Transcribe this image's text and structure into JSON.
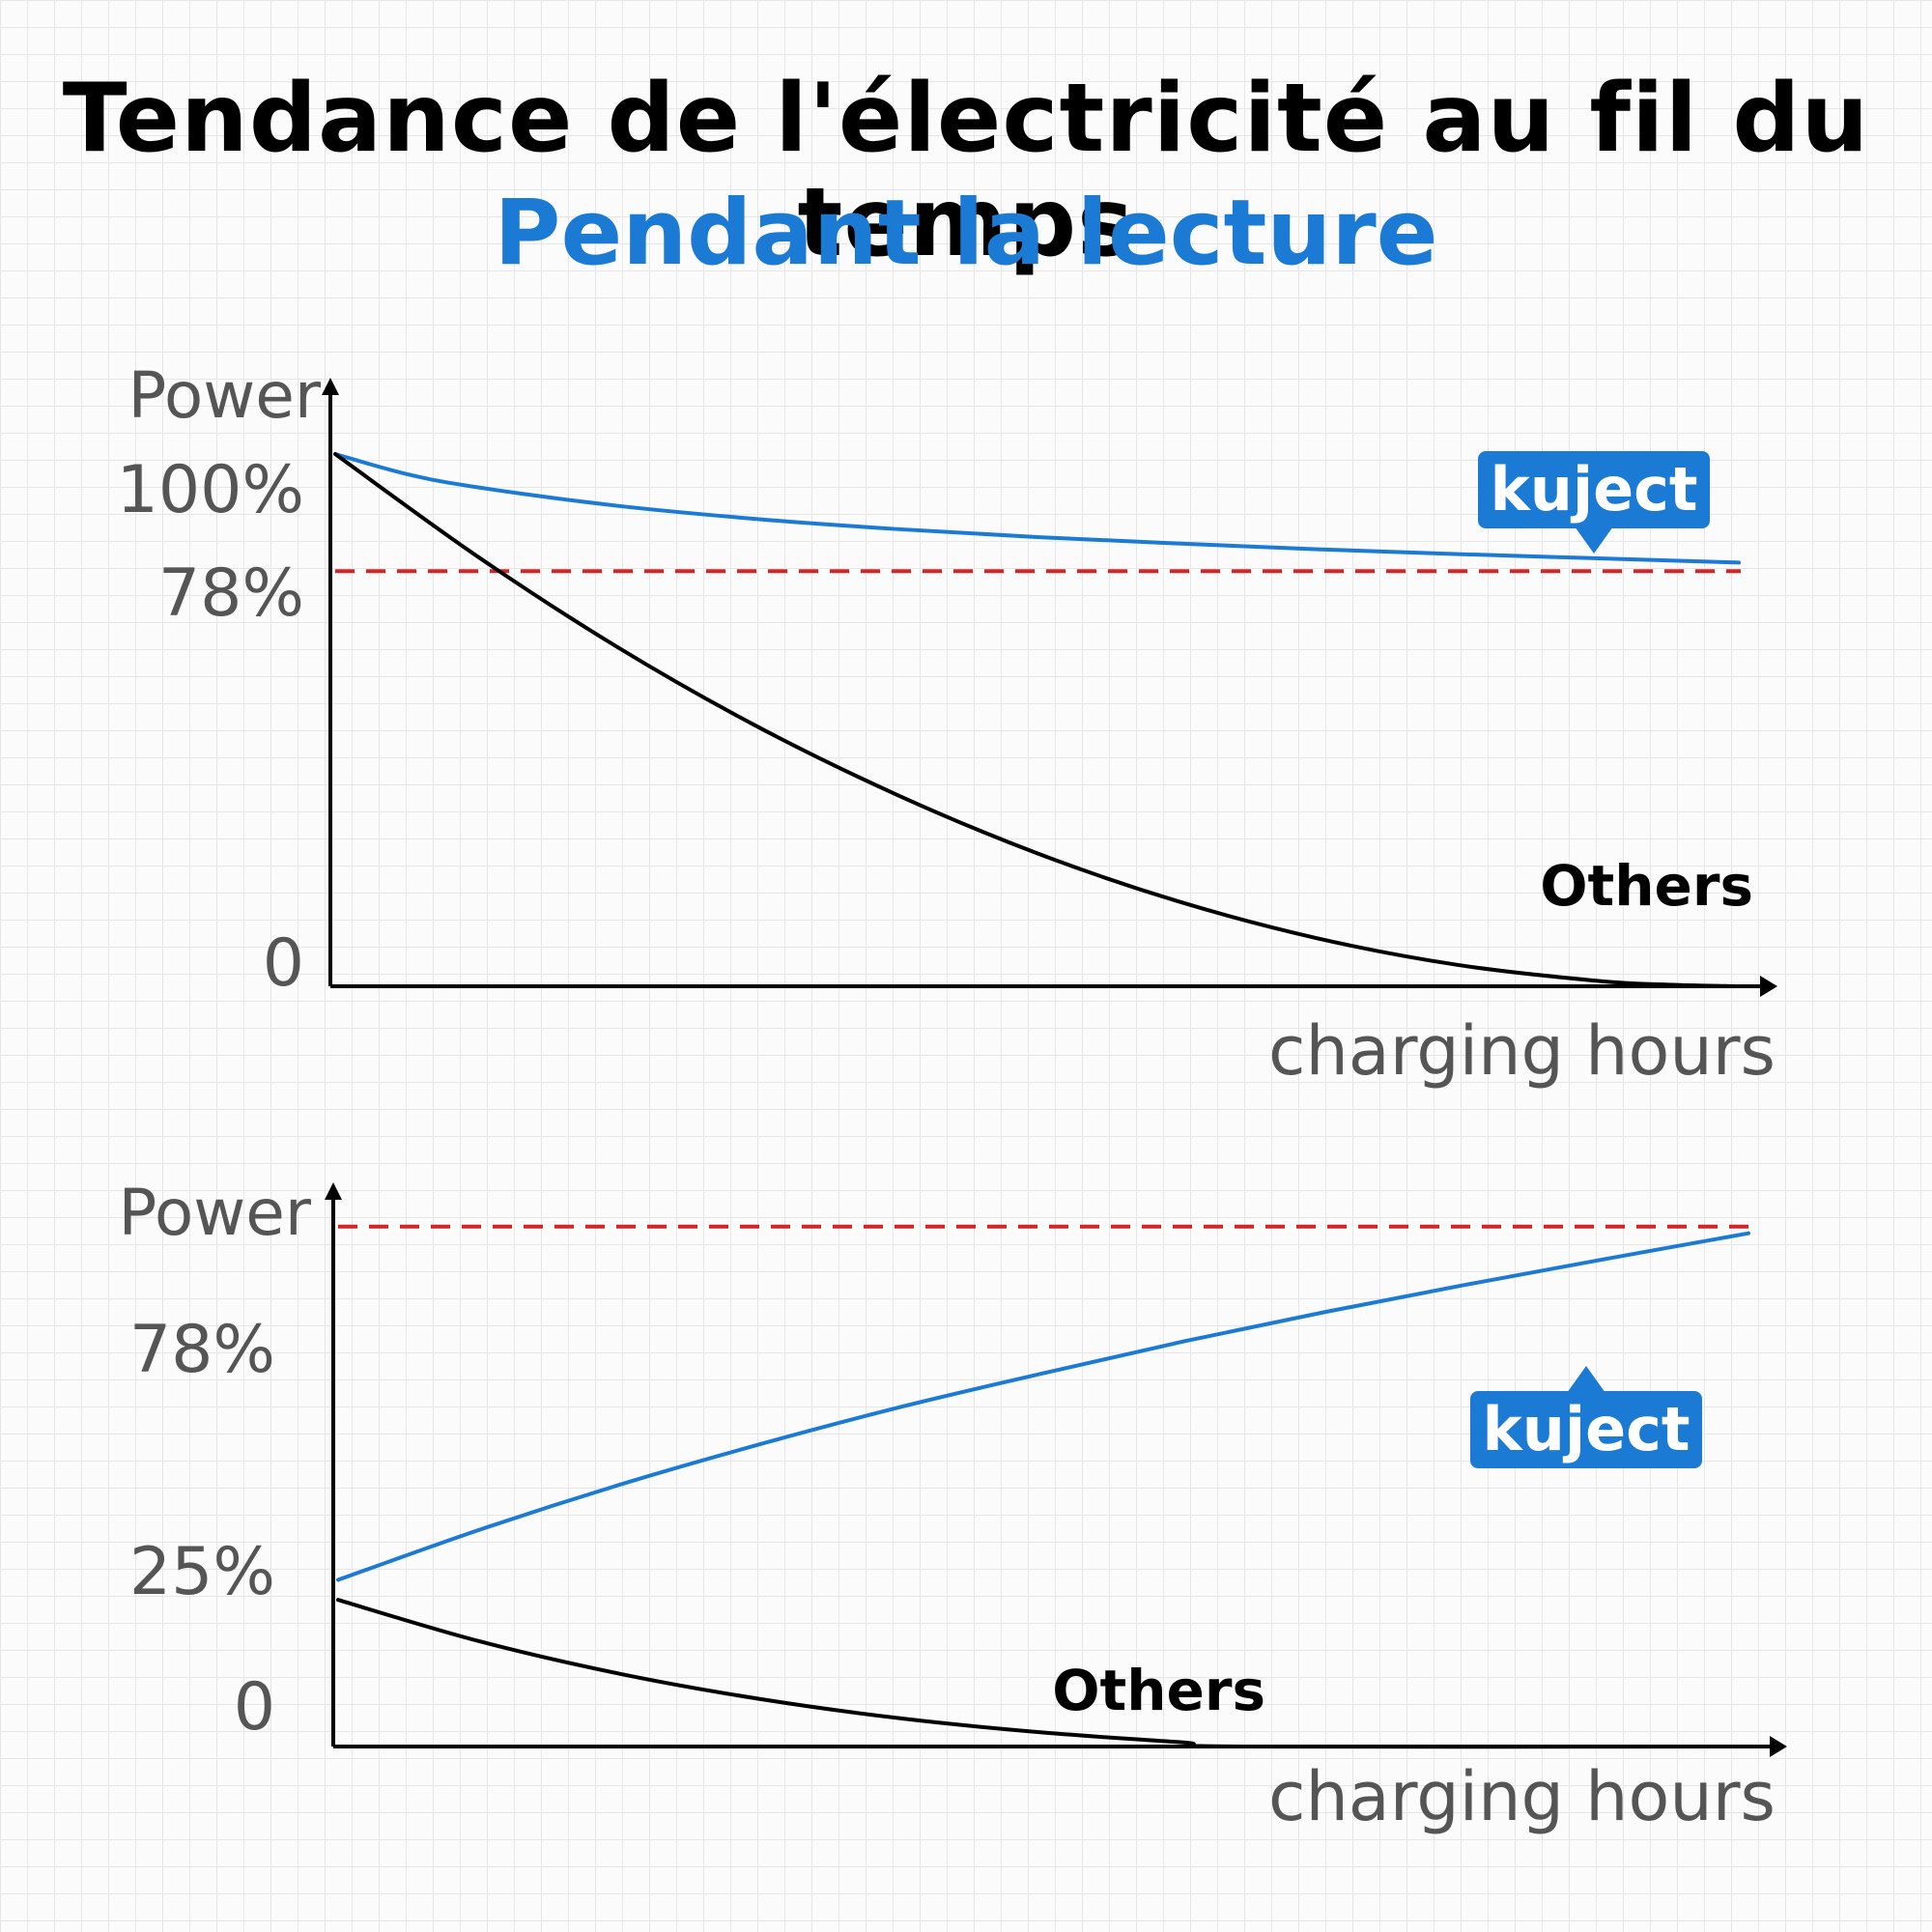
{
  "header": {
    "title": "Tendance de l'électricité au fil du temps",
    "subtitle": "Pendant la lecture"
  },
  "colors": {
    "kuject": "#1b7ad4",
    "others": "#000000",
    "threshold": "#d42424",
    "axis": "#000000"
  },
  "chart_data": [
    {
      "type": "line",
      "ylabel": "Power",
      "xlabel": "charging hours",
      "yticks": [
        "100%",
        "78%",
        "0"
      ],
      "ylim": [
        0,
        100
      ],
      "xlim": [
        0,
        1
      ],
      "grid": false,
      "threshold": {
        "value": 78,
        "style": "dashed"
      },
      "series": [
        {
          "name": "kuject",
          "badge": "down",
          "x": [
            0,
            0.05,
            0.1,
            0.2,
            0.3,
            0.4,
            0.5,
            0.6,
            0.7,
            0.8,
            0.9,
            1.0
          ],
          "values": [
            100,
            96.3,
            93.8,
            90.3,
            87.8,
            85.9,
            84.4,
            83.2,
            82.1,
            81.2,
            80.4,
            79.6
          ]
        },
        {
          "name": "Others",
          "x": [
            0,
            0.1,
            0.2,
            0.3,
            0.4,
            0.5,
            0.6,
            0.7,
            0.8,
            0.9,
            0.95,
            1.0
          ],
          "values": [
            100,
            81,
            63.9,
            48.9,
            36,
            25,
            16,
            9,
            4,
            1,
            0.3,
            0
          ]
        }
      ]
    },
    {
      "type": "line",
      "ylabel": "Power",
      "xlabel": "charging hours",
      "yticks": [
        "78%",
        "25%",
        "0"
      ],
      "ylim": [
        0,
        100
      ],
      "xlim": [
        0,
        1
      ],
      "grid": false,
      "threshold": {
        "value": 78,
        "style": "dashed"
      },
      "series": [
        {
          "name": "kuject",
          "badge": "up",
          "x": [
            0,
            0.1,
            0.2,
            0.3,
            0.4,
            0.5,
            0.6,
            0.7,
            0.8,
            0.9,
            1.0
          ],
          "values": [
            25,
            32.5,
            39.3,
            45.4,
            51,
            56,
            60.8,
            65.2,
            69.3,
            73.2,
            77
          ]
        },
        {
          "name": "Others",
          "x": [
            0,
            0.1,
            0.2,
            0.3,
            0.4,
            0.5,
            0.6,
            0.64,
            1.0
          ],
          "values": [
            22,
            15.8,
            10.9,
            7.1,
            4.2,
            2.1,
            0.6,
            0,
            0
          ]
        }
      ]
    }
  ]
}
